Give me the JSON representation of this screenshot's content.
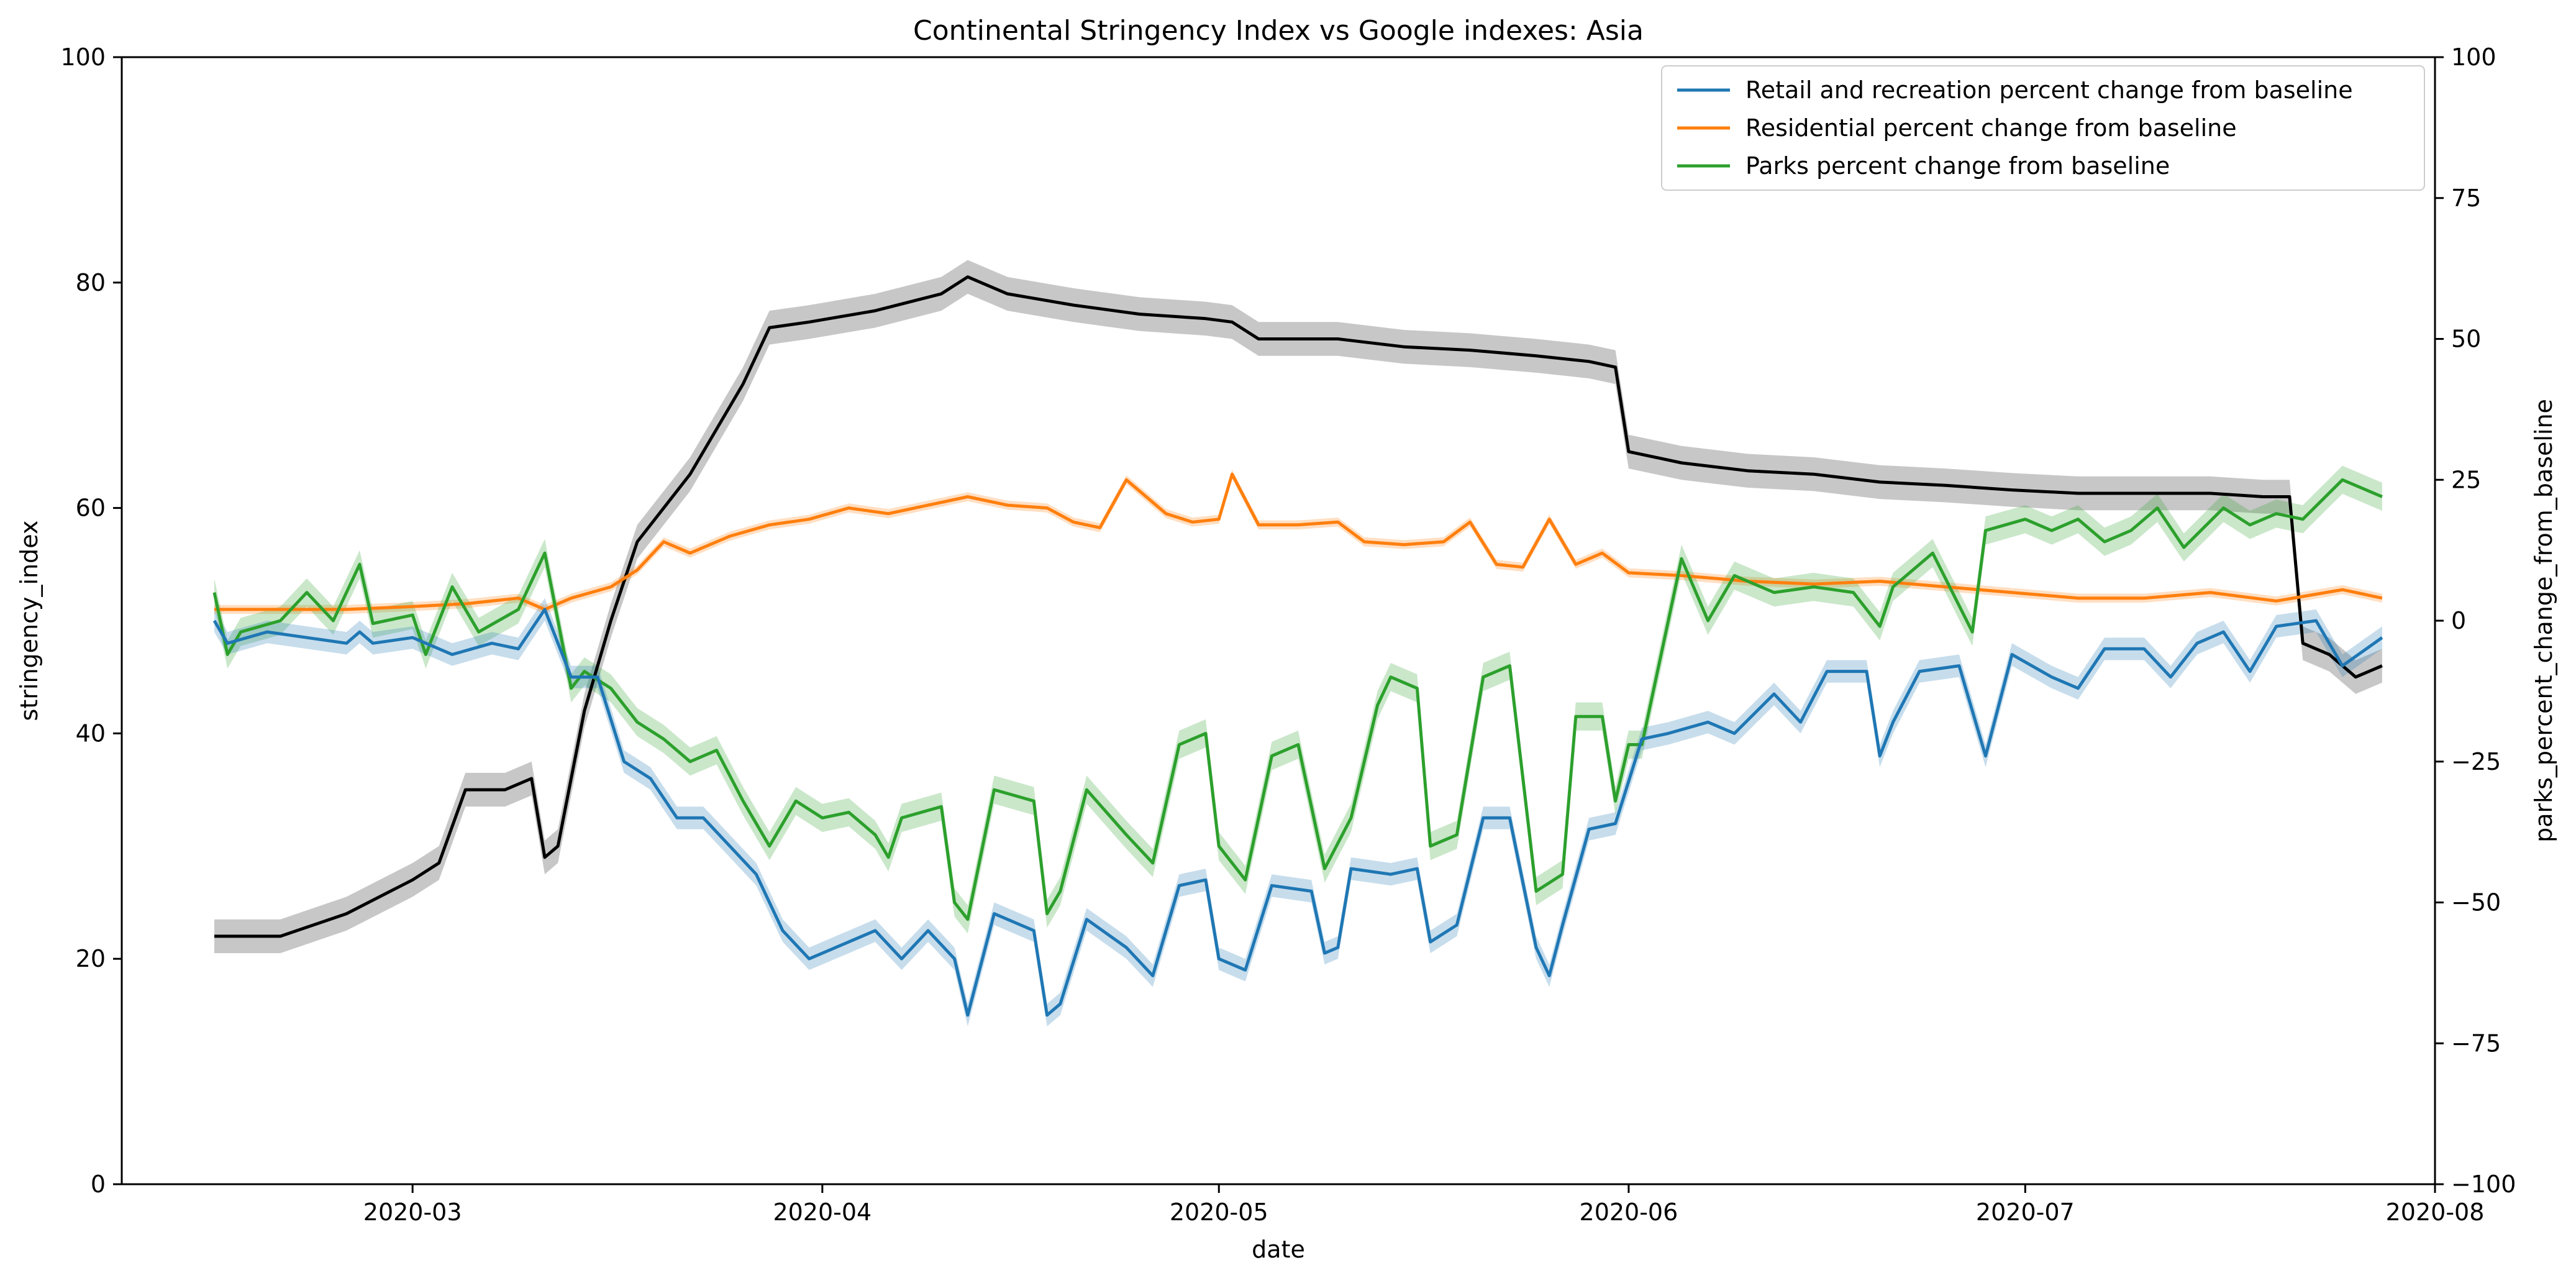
{
  "chart_data": {
    "type": "line",
    "title": "Continental Stringency Index vs Google indexes: Asia",
    "xlabel": "date",
    "ylabel_left": "stringency_index",
    "ylabel_right": "parks_percent_change_from_baseline",
    "x_axis": {
      "range": [
        "2020-02-08",
        "2020-08-01"
      ],
      "ticks": [
        "2020-03-01",
        "2020-04-01",
        "2020-05-01",
        "2020-06-01",
        "2020-07-01",
        "2020-08-01"
      ],
      "tick_labels": [
        "2020-03",
        "2020-04",
        "2020-05",
        "2020-06",
        "2020-07",
        "2020-08"
      ]
    },
    "y_left": {
      "range": [
        0,
        100
      ],
      "ticks": [
        0,
        20,
        40,
        60,
        80,
        100
      ]
    },
    "y_right": {
      "range": [
        -100,
        100
      ],
      "ticks": [
        -100,
        -75,
        -50,
        -25,
        0,
        25,
        50,
        75,
        100
      ]
    },
    "grid": false,
    "legend": {
      "position": "top-right",
      "entries": [
        {
          "label": "Retail and recreation percent change from baseline",
          "color": "#1f77b4"
        },
        {
          "label": "Residential percent change from baseline",
          "color": "#ff7f0e"
        },
        {
          "label": "Parks percent change from baseline",
          "color": "#2ca02c"
        }
      ]
    },
    "series": [
      {
        "axis": "left",
        "color": "#000000",
        "band": 1.5,
        "points": [
          [
            "2020-02-15",
            22
          ],
          [
            "2020-02-20",
            22
          ],
          [
            "2020-02-25",
            24
          ],
          [
            "2020-03-01",
            27
          ],
          [
            "2020-03-03",
            28.5
          ],
          [
            "2020-03-05",
            35
          ],
          [
            "2020-03-08",
            35
          ],
          [
            "2020-03-10",
            36
          ],
          [
            "2020-03-11",
            29
          ],
          [
            "2020-03-12",
            30
          ],
          [
            "2020-03-14",
            42
          ],
          [
            "2020-03-16",
            50
          ],
          [
            "2020-03-18",
            57
          ],
          [
            "2020-03-20",
            60
          ],
          [
            "2020-03-22",
            63
          ],
          [
            "2020-03-24",
            67
          ],
          [
            "2020-03-26",
            71
          ],
          [
            "2020-03-28",
            76
          ],
          [
            "2020-03-31",
            76.5
          ],
          [
            "2020-04-05",
            77.5
          ],
          [
            "2020-04-10",
            79
          ],
          [
            "2020-04-12",
            80.5
          ],
          [
            "2020-04-15",
            79
          ],
          [
            "2020-04-20",
            78
          ],
          [
            "2020-04-25",
            77.2
          ],
          [
            "2020-04-30",
            76.8
          ],
          [
            "2020-05-02",
            76.5
          ],
          [
            "2020-05-04",
            75
          ],
          [
            "2020-05-10",
            75
          ],
          [
            "2020-05-15",
            74.3
          ],
          [
            "2020-05-20",
            74
          ],
          [
            "2020-05-25",
            73.5
          ],
          [
            "2020-05-29",
            73
          ],
          [
            "2020-05-31",
            72.5
          ],
          [
            "2020-06-01",
            65
          ],
          [
            "2020-06-05",
            64
          ],
          [
            "2020-06-10",
            63.3
          ],
          [
            "2020-06-15",
            63
          ],
          [
            "2020-06-20",
            62.3
          ],
          [
            "2020-06-25",
            62
          ],
          [
            "2020-06-30",
            61.6
          ],
          [
            "2020-07-05",
            61.3
          ],
          [
            "2020-07-10",
            61.3
          ],
          [
            "2020-07-15",
            61.3
          ],
          [
            "2020-07-19",
            61
          ],
          [
            "2020-07-21",
            61
          ],
          [
            "2020-07-22",
            48
          ],
          [
            "2020-07-24",
            47
          ],
          [
            "2020-07-26",
            45
          ],
          [
            "2020-07-28",
            46
          ]
        ]
      },
      {
        "axis": "right",
        "color": "#ff7f0e",
        "band": 0.8,
        "points": [
          [
            "2020-02-15",
            2
          ],
          [
            "2020-02-20",
            2
          ],
          [
            "2020-02-25",
            2
          ],
          [
            "2020-03-01",
            2.5
          ],
          [
            "2020-03-05",
            3
          ],
          [
            "2020-03-09",
            4
          ],
          [
            "2020-03-11",
            2
          ],
          [
            "2020-03-13",
            4
          ],
          [
            "2020-03-16",
            6
          ],
          [
            "2020-03-18",
            9
          ],
          [
            "2020-03-20",
            14
          ],
          [
            "2020-03-22",
            12
          ],
          [
            "2020-03-25",
            15
          ],
          [
            "2020-03-28",
            17
          ],
          [
            "2020-03-31",
            18
          ],
          [
            "2020-04-03",
            20
          ],
          [
            "2020-04-06",
            19
          ],
          [
            "2020-04-09",
            20.5
          ],
          [
            "2020-04-12",
            22
          ],
          [
            "2020-04-15",
            20.5
          ],
          [
            "2020-04-18",
            20
          ],
          [
            "2020-04-20",
            17.5
          ],
          [
            "2020-04-22",
            16.5
          ],
          [
            "2020-04-24",
            25
          ],
          [
            "2020-04-27",
            19
          ],
          [
            "2020-04-29",
            17.5
          ],
          [
            "2020-05-01",
            18
          ],
          [
            "2020-05-02",
            26
          ],
          [
            "2020-05-04",
            17
          ],
          [
            "2020-05-07",
            17
          ],
          [
            "2020-05-10",
            17.5
          ],
          [
            "2020-05-12",
            14
          ],
          [
            "2020-05-15",
            13.5
          ],
          [
            "2020-05-18",
            14
          ],
          [
            "2020-05-20",
            17.5
          ],
          [
            "2020-05-22",
            10
          ],
          [
            "2020-05-24",
            9.5
          ],
          [
            "2020-05-26",
            18
          ],
          [
            "2020-05-28",
            10
          ],
          [
            "2020-05-30",
            12
          ],
          [
            "2020-06-01",
            8.5
          ],
          [
            "2020-06-05",
            8
          ],
          [
            "2020-06-10",
            7
          ],
          [
            "2020-06-15",
            6.5
          ],
          [
            "2020-06-20",
            7
          ],
          [
            "2020-06-25",
            6
          ],
          [
            "2020-06-30",
            5
          ],
          [
            "2020-07-05",
            4
          ],
          [
            "2020-07-10",
            4
          ],
          [
            "2020-07-15",
            5
          ],
          [
            "2020-07-20",
            3.5
          ],
          [
            "2020-07-25",
            5.5
          ],
          [
            "2020-07-28",
            4
          ]
        ]
      },
      {
        "axis": "right",
        "color": "#2ca02c",
        "band": 2.5,
        "points": [
          [
            "2020-02-15",
            5
          ],
          [
            "2020-02-16",
            -6
          ],
          [
            "2020-02-17",
            -2
          ],
          [
            "2020-02-20",
            0
          ],
          [
            "2020-02-22",
            5
          ],
          [
            "2020-02-24",
            0
          ],
          [
            "2020-02-26",
            10
          ],
          [
            "2020-02-27",
            -0.5
          ],
          [
            "2020-03-01",
            1
          ],
          [
            "2020-03-02",
            -6
          ],
          [
            "2020-03-04",
            6
          ],
          [
            "2020-03-06",
            -2
          ],
          [
            "2020-03-09",
            2
          ],
          [
            "2020-03-11",
            12
          ],
          [
            "2020-03-13",
            -12
          ],
          [
            "2020-03-14",
            -9
          ],
          [
            "2020-03-16",
            -12
          ],
          [
            "2020-03-18",
            -18
          ],
          [
            "2020-03-20",
            -21
          ],
          [
            "2020-03-22",
            -25
          ],
          [
            "2020-03-24",
            -23
          ],
          [
            "2020-03-26",
            -32
          ],
          [
            "2020-03-28",
            -40
          ],
          [
            "2020-03-30",
            -32
          ],
          [
            "2020-04-01",
            -35
          ],
          [
            "2020-04-03",
            -34
          ],
          [
            "2020-04-05",
            -38
          ],
          [
            "2020-04-06",
            -42
          ],
          [
            "2020-04-07",
            -35
          ],
          [
            "2020-04-10",
            -33
          ],
          [
            "2020-04-11",
            -50
          ],
          [
            "2020-04-12",
            -53
          ],
          [
            "2020-04-14",
            -30
          ],
          [
            "2020-04-17",
            -32
          ],
          [
            "2020-04-18",
            -52
          ],
          [
            "2020-04-19",
            -48
          ],
          [
            "2020-04-21",
            -30
          ],
          [
            "2020-04-24",
            -38
          ],
          [
            "2020-04-26",
            -43
          ],
          [
            "2020-04-28",
            -22
          ],
          [
            "2020-04-30",
            -20
          ],
          [
            "2020-05-01",
            -40
          ],
          [
            "2020-05-03",
            -46
          ],
          [
            "2020-05-05",
            -24
          ],
          [
            "2020-05-07",
            -22
          ],
          [
            "2020-05-09",
            -44
          ],
          [
            "2020-05-11",
            -35
          ],
          [
            "2020-05-13",
            -15
          ],
          [
            "2020-05-14",
            -10
          ],
          [
            "2020-05-16",
            -12
          ],
          [
            "2020-05-17",
            -40
          ],
          [
            "2020-05-19",
            -38
          ],
          [
            "2020-05-21",
            -10
          ],
          [
            "2020-05-23",
            -8
          ],
          [
            "2020-05-25",
            -48
          ],
          [
            "2020-05-27",
            -45
          ],
          [
            "2020-05-28",
            -17
          ],
          [
            "2020-05-30",
            -17
          ],
          [
            "2020-05-31",
            -32
          ],
          [
            "2020-06-01",
            -22
          ],
          [
            "2020-06-02",
            -22
          ],
          [
            "2020-06-04",
            0
          ],
          [
            "2020-06-05",
            11
          ],
          [
            "2020-06-07",
            0
          ],
          [
            "2020-06-09",
            8
          ],
          [
            "2020-06-12",
            5
          ],
          [
            "2020-06-15",
            6
          ],
          [
            "2020-06-18",
            5
          ],
          [
            "2020-06-20",
            -1
          ],
          [
            "2020-06-21",
            6
          ],
          [
            "2020-06-24",
            12
          ],
          [
            "2020-06-27",
            -2
          ],
          [
            "2020-06-28",
            16
          ],
          [
            "2020-07-01",
            18
          ],
          [
            "2020-07-03",
            16
          ],
          [
            "2020-07-05",
            18
          ],
          [
            "2020-07-07",
            14
          ],
          [
            "2020-07-09",
            16
          ],
          [
            "2020-07-11",
            20
          ],
          [
            "2020-07-13",
            13
          ],
          [
            "2020-07-16",
            20
          ],
          [
            "2020-07-18",
            17
          ],
          [
            "2020-07-20",
            19
          ],
          [
            "2020-07-22",
            18
          ],
          [
            "2020-07-25",
            25
          ],
          [
            "2020-07-28",
            22
          ]
        ]
      },
      {
        "axis": "right",
        "color": "#1f77b4",
        "band": 2.0,
        "points": [
          [
            "2020-02-15",
            0
          ],
          [
            "2020-02-16",
            -4
          ],
          [
            "2020-02-19",
            -2
          ],
          [
            "2020-02-22",
            -3
          ],
          [
            "2020-02-25",
            -4
          ],
          [
            "2020-02-26",
            -2
          ],
          [
            "2020-02-27",
            -4
          ],
          [
            "2020-03-01",
            -3
          ],
          [
            "2020-03-04",
            -6
          ],
          [
            "2020-03-07",
            -4
          ],
          [
            "2020-03-09",
            -5
          ],
          [
            "2020-03-11",
            2
          ],
          [
            "2020-03-13",
            -10
          ],
          [
            "2020-03-15",
            -10
          ],
          [
            "2020-03-17",
            -25
          ],
          [
            "2020-03-19",
            -28
          ],
          [
            "2020-03-21",
            -35
          ],
          [
            "2020-03-23",
            -35
          ],
          [
            "2020-03-25",
            -40
          ],
          [
            "2020-03-27",
            -45
          ],
          [
            "2020-03-29",
            -55
          ],
          [
            "2020-03-31",
            -60
          ],
          [
            "2020-04-02",
            -58
          ],
          [
            "2020-04-05",
            -55
          ],
          [
            "2020-04-07",
            -60
          ],
          [
            "2020-04-09",
            -55
          ],
          [
            "2020-04-11",
            -60
          ],
          [
            "2020-04-12",
            -70
          ],
          [
            "2020-04-14",
            -52
          ],
          [
            "2020-04-17",
            -55
          ],
          [
            "2020-04-18",
            -70
          ],
          [
            "2020-04-19",
            -68
          ],
          [
            "2020-04-21",
            -53
          ],
          [
            "2020-04-24",
            -58
          ],
          [
            "2020-04-26",
            -63
          ],
          [
            "2020-04-28",
            -47
          ],
          [
            "2020-04-30",
            -46
          ],
          [
            "2020-05-01",
            -60
          ],
          [
            "2020-05-03",
            -62
          ],
          [
            "2020-05-05",
            -47
          ],
          [
            "2020-05-08",
            -48
          ],
          [
            "2020-05-09",
            -59
          ],
          [
            "2020-05-10",
            -58
          ],
          [
            "2020-05-11",
            -44
          ],
          [
            "2020-05-14",
            -45
          ],
          [
            "2020-05-16",
            -44
          ],
          [
            "2020-05-17",
            -57
          ],
          [
            "2020-05-19",
            -54
          ],
          [
            "2020-05-21",
            -35
          ],
          [
            "2020-05-23",
            -35
          ],
          [
            "2020-05-25",
            -58
          ],
          [
            "2020-05-26",
            -63
          ],
          [
            "2020-05-27",
            -54
          ],
          [
            "2020-05-29",
            -37
          ],
          [
            "2020-05-31",
            -36
          ],
          [
            "2020-06-02",
            -21
          ],
          [
            "2020-06-04",
            -20
          ],
          [
            "2020-06-07",
            -18
          ],
          [
            "2020-06-09",
            -20
          ],
          [
            "2020-06-12",
            -13
          ],
          [
            "2020-06-14",
            -18
          ],
          [
            "2020-06-16",
            -9
          ],
          [
            "2020-06-19",
            -9
          ],
          [
            "2020-06-20",
            -24
          ],
          [
            "2020-06-21",
            -18
          ],
          [
            "2020-06-23",
            -9
          ],
          [
            "2020-06-26",
            -8
          ],
          [
            "2020-06-28",
            -24
          ],
          [
            "2020-06-30",
            -6
          ],
          [
            "2020-07-03",
            -10
          ],
          [
            "2020-07-05",
            -12
          ],
          [
            "2020-07-07",
            -5
          ],
          [
            "2020-07-10",
            -5
          ],
          [
            "2020-07-12",
            -10
          ],
          [
            "2020-07-14",
            -4
          ],
          [
            "2020-07-16",
            -2
          ],
          [
            "2020-07-18",
            -9
          ],
          [
            "2020-07-20",
            -1
          ],
          [
            "2020-07-23",
            0
          ],
          [
            "2020-07-25",
            -8
          ],
          [
            "2020-07-28",
            -3
          ]
        ]
      }
    ]
  }
}
